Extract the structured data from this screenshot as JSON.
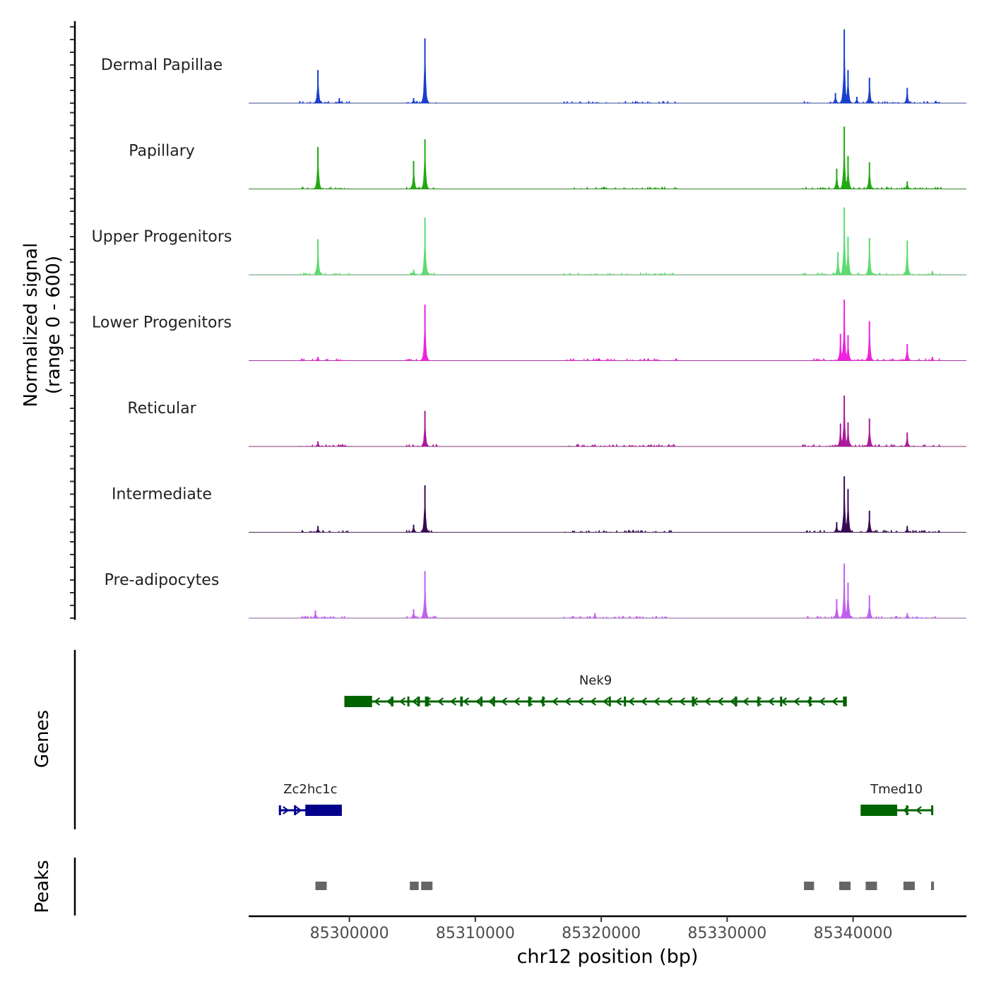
{
  "chart_data": {
    "type": "area",
    "title": "",
    "ylabel_line1": "Normalized signal",
    "ylabel_line2": "(range 0 - 600)",
    "xlabel": "chr12 position (bp)",
    "chromosome": "chr12",
    "xlim": [
      85292000,
      85349000
    ],
    "ylim": [
      0,
      600
    ],
    "x_ticks": [
      85300000,
      85310000,
      85320000,
      85330000,
      85340000
    ],
    "x_tick_labels": [
      "85300000",
      "85310000",
      "85320000",
      "85330000",
      "85340000"
    ],
    "series": [
      {
        "name": "Dermal Papillae",
        "color": "#1b3fd0",
        "peaks": [
          [
            85297500,
            260
          ],
          [
            85306000,
            510
          ],
          [
            85305100,
            40
          ],
          [
            85299200,
            40
          ],
          [
            85339300,
            580
          ],
          [
            85339600,
            260
          ],
          [
            85340300,
            50
          ],
          [
            85341300,
            200
          ],
          [
            85344300,
            120
          ],
          [
            85338600,
            80
          ]
        ]
      },
      {
        "name": "Papillary",
        "color": "#22aa11",
        "peaks": [
          [
            85297500,
            330
          ],
          [
            85305100,
            220
          ],
          [
            85306000,
            390
          ],
          [
            85339300,
            490
          ],
          [
            85339600,
            260
          ],
          [
            85338700,
            160
          ],
          [
            85341300,
            210
          ],
          [
            85344300,
            60
          ]
        ]
      },
      {
        "name": "Upper Progenitors",
        "color": "#5ddb70",
        "peaks": [
          [
            85297500,
            280
          ],
          [
            85305100,
            40
          ],
          [
            85306000,
            450
          ],
          [
            85339300,
            530
          ],
          [
            85338800,
            180
          ],
          [
            85339600,
            300
          ],
          [
            85341300,
            290
          ],
          [
            85344300,
            270
          ],
          [
            85346300,
            30
          ]
        ]
      },
      {
        "name": "Lower Progenitors",
        "color": "#ee22dd",
        "peaks": [
          [
            85297500,
            30
          ],
          [
            85306000,
            440
          ],
          [
            85339300,
            480
          ],
          [
            85339000,
            210
          ],
          [
            85339600,
            200
          ],
          [
            85341300,
            310
          ],
          [
            85344300,
            130
          ],
          [
            85346300,
            30
          ]
        ]
      },
      {
        "name": "Reticular",
        "color": "#aa1a9a",
        "peaks": [
          [
            85297500,
            40
          ],
          [
            85306000,
            280
          ],
          [
            85339300,
            400
          ],
          [
            85339000,
            180
          ],
          [
            85339600,
            190
          ],
          [
            85341300,
            220
          ],
          [
            85344300,
            110
          ]
        ]
      },
      {
        "name": "Intermediate",
        "color": "#3a0a55",
        "peaks": [
          [
            85297500,
            50
          ],
          [
            85305100,
            60
          ],
          [
            85306000,
            370
          ],
          [
            85339300,
            440
          ],
          [
            85339600,
            340
          ],
          [
            85338700,
            80
          ],
          [
            85341300,
            170
          ],
          [
            85344300,
            50
          ]
        ]
      },
      {
        "name": "Pre-adipocytes",
        "color": "#c060f0",
        "peaks": [
          [
            85297300,
            60
          ],
          [
            85305100,
            70
          ],
          [
            85306000,
            370
          ],
          [
            85319500,
            40
          ],
          [
            85339300,
            430
          ],
          [
            85338700,
            150
          ],
          [
            85339600,
            280
          ],
          [
            85341300,
            180
          ],
          [
            85344300,
            40
          ]
        ]
      }
    ],
    "genes_label": "Genes",
    "genes": [
      {
        "name": "Nek9",
        "strand": "-",
        "color": "#006400",
        "start": 85299600,
        "end": 85339500,
        "exons": [
          [
            85299600,
            85301800
          ],
          [
            85303300,
            85303500
          ],
          [
            85304600,
            85304700
          ],
          [
            85305400,
            85305600
          ],
          [
            85306000,
            85306300
          ],
          [
            85308800,
            85309000
          ],
          [
            85310400,
            85310500
          ],
          [
            85311400,
            85311500
          ],
          [
            85314200,
            85314400
          ],
          [
            85315300,
            85315400
          ],
          [
            85320600,
            85320700
          ],
          [
            85321800,
            85321900
          ],
          [
            85327200,
            85327400
          ],
          [
            85330600,
            85330800
          ],
          [
            85332400,
            85332500
          ],
          [
            85334200,
            85334300
          ],
          [
            85336500,
            85336600
          ],
          [
            85339200,
            85339500
          ]
        ]
      },
      {
        "name": "Zc2hc1c",
        "strand": "+",
        "color": "#00008b",
        "start": 85294400,
        "end": 85299400,
        "exons": [
          [
            85294400,
            85294500
          ],
          [
            85295600,
            85295700
          ],
          [
            85296500,
            85299400
          ]
        ]
      },
      {
        "name": "Tmed10",
        "strand": "-",
        "color": "#006400",
        "start": 85340600,
        "end": 85346300,
        "exons": [
          [
            85340600,
            85343500
          ],
          [
            85344200,
            85344300
          ],
          [
            85346200,
            85346300
          ]
        ]
      }
    ],
    "peaks_label": "Peaks",
    "peak_color": "#666666",
    "peak_regions": [
      [
        85297300,
        85298200
      ],
      [
        85304800,
        85305500
      ],
      [
        85305700,
        85306600
      ],
      [
        85336100,
        85336900
      ],
      [
        85338900,
        85339800
      ],
      [
        85341000,
        85341900
      ],
      [
        85344000,
        85344900
      ],
      [
        85346200,
        85346400
      ]
    ]
  }
}
